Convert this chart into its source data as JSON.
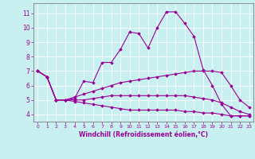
{
  "title": "",
  "xlabel": "Windchill (Refroidissement éolien,°C)",
  "ylabel": "",
  "background_color": "#c8f0f0",
  "line_color": "#990099",
  "grid_color": "#ffffff",
  "xlim": [
    -0.5,
    23.5
  ],
  "ylim": [
    3.5,
    11.7
  ],
  "xticks": [
    0,
    1,
    2,
    3,
    4,
    5,
    6,
    7,
    8,
    9,
    10,
    11,
    12,
    13,
    14,
    15,
    16,
    17,
    18,
    19,
    20,
    21,
    22,
    23
  ],
  "yticks": [
    4,
    5,
    6,
    7,
    8,
    9,
    10,
    11
  ],
  "series": [
    {
      "x": [
        0,
        1,
        2,
        3,
        4,
        5,
        6,
        7,
        8,
        9,
        10,
        11,
        12,
        13,
        14,
        15,
        16,
        17,
        18,
        19,
        20,
        21,
        22,
        23
      ],
      "y": [
        7.0,
        6.6,
        5.0,
        5.0,
        5.1,
        6.3,
        6.2,
        7.6,
        7.6,
        8.5,
        9.7,
        9.6,
        8.6,
        10.0,
        11.1,
        11.1,
        10.3,
        9.4,
        7.1,
        6.0,
        4.7,
        3.9,
        3.9,
        3.9
      ]
    },
    {
      "x": [
        0,
        1,
        2,
        3,
        4,
        5,
        6,
        7,
        8,
        9,
        10,
        11,
        12,
        13,
        14,
        15,
        16,
        17,
        18,
        19,
        20,
        21,
        22,
        23
      ],
      "y": [
        7.0,
        6.6,
        5.0,
        5.0,
        5.2,
        5.4,
        5.6,
        5.8,
        6.0,
        6.2,
        6.3,
        6.4,
        6.5,
        6.6,
        6.7,
        6.8,
        6.9,
        7.0,
        7.0,
        7.0,
        6.9,
        6.0,
        5.0,
        4.5
      ]
    },
    {
      "x": [
        0,
        1,
        2,
        3,
        4,
        5,
        6,
        7,
        8,
        9,
        10,
        11,
        12,
        13,
        14,
        15,
        16,
        17,
        18,
        19,
        20,
        21,
        22,
        23
      ],
      "y": [
        7.0,
        6.6,
        5.0,
        5.0,
        5.0,
        5.0,
        5.1,
        5.2,
        5.3,
        5.3,
        5.3,
        5.3,
        5.3,
        5.3,
        5.3,
        5.3,
        5.3,
        5.2,
        5.1,
        5.0,
        4.8,
        4.5,
        4.2,
        4.0
      ]
    },
    {
      "x": [
        0,
        1,
        2,
        3,
        4,
        5,
        6,
        7,
        8,
        9,
        10,
        11,
        12,
        13,
        14,
        15,
        16,
        17,
        18,
        19,
        20,
        21,
        22,
        23
      ],
      "y": [
        7.0,
        6.6,
        5.0,
        5.0,
        4.9,
        4.8,
        4.7,
        4.6,
        4.5,
        4.4,
        4.3,
        4.3,
        4.3,
        4.3,
        4.3,
        4.3,
        4.2,
        4.2,
        4.1,
        4.1,
        4.0,
        3.9,
        3.9,
        3.9
      ]
    }
  ]
}
